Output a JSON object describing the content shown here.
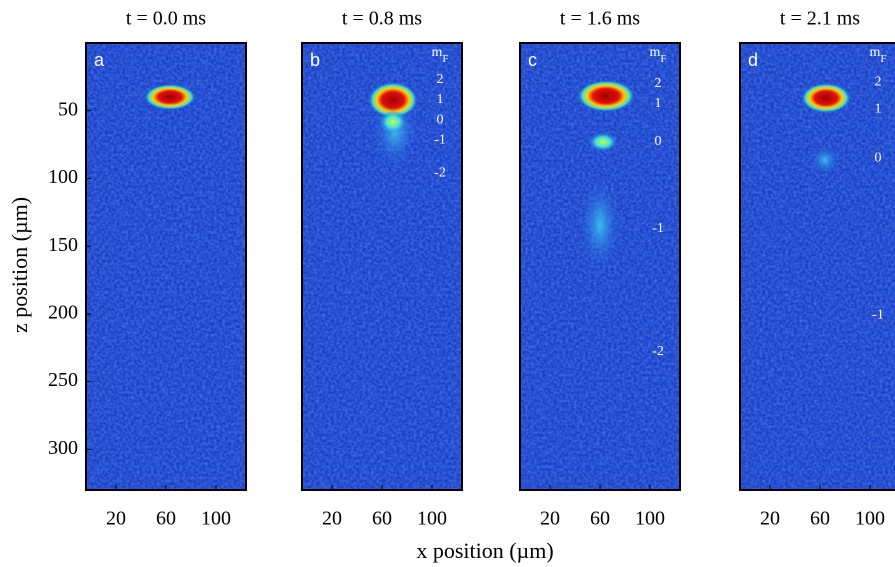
{
  "figure": {
    "ylabel": "z position (µm)",
    "xlabel": "x position (µm)"
  },
  "chart_data": [
    {
      "type": "image",
      "title": "t  =  0.0 ms",
      "letter": "a",
      "xlim": [
        -4,
        124
      ],
      "ylim": [
        0,
        330
      ],
      "xticks": [
        20,
        60,
        100
      ],
      "yticks": [
        50,
        100,
        150,
        200,
        250,
        300
      ]
    },
    {
      "type": "image",
      "title": "t  =  0.8 ms",
      "letter": "b",
      "xlim": [
        -4,
        124
      ],
      "ylim": [
        0,
        330
      ],
      "xticks": [
        20,
        60,
        100
      ],
      "header": "m",
      "header_sub": "F",
      "annotations": [
        {
          "text": "2",
          "z": 27
        },
        {
          "text": "1",
          "z": 42
        },
        {
          "text": "0",
          "z": 57
        },
        {
          "text": "-1",
          "z": 72
        },
        {
          "text": "-2",
          "z": 96
        }
      ]
    },
    {
      "type": "image",
      "title": "t  = 1.6 ms",
      "letter": "c",
      "xlim": [
        -4,
        124
      ],
      "ylim": [
        0,
        330
      ],
      "xticks": [
        20,
        60,
        100
      ],
      "header": "m",
      "header_sub": "F",
      "annotations": [
        {
          "text": "2",
          "z": 30
        },
        {
          "text": "1",
          "z": 45
        },
        {
          "text": "0",
          "z": 73
        },
        {
          "text": "-1",
          "z": 137
        },
        {
          "text": "-2",
          "z": 228
        }
      ]
    },
    {
      "type": "image",
      "title": "t  =  2.1 ms",
      "letter": "d",
      "xlim": [
        -4,
        124
      ],
      "ylim": [
        0,
        330
      ],
      "xticks": [
        20,
        60,
        100
      ],
      "header": "m",
      "header_sub": "F",
      "annotations": [
        {
          "text": "2",
          "z": 29
        },
        {
          "text": "1",
          "z": 49
        },
        {
          "text": "0",
          "z": 85
        },
        {
          "text": "-1",
          "z": 201
        }
      ]
    }
  ]
}
